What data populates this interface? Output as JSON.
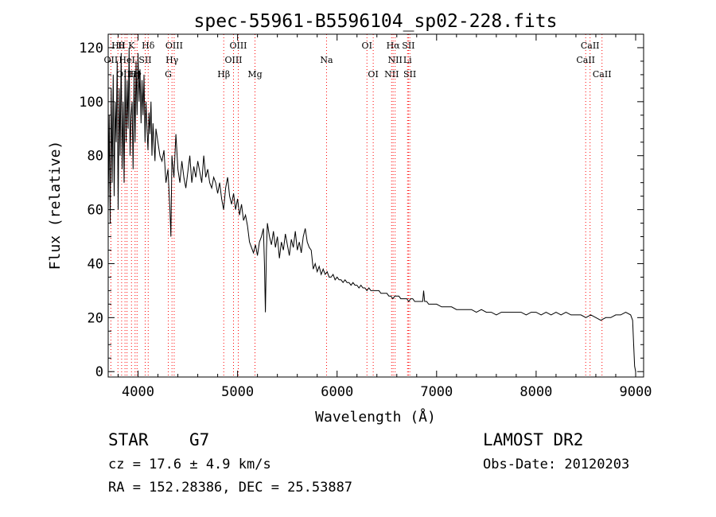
{
  "chart_data": {
    "type": "line",
    "title": "spec-55961-B5596104_sp02-228.fits",
    "xlabel": "Wavelength (Å)",
    "ylabel": "Flux (relative)",
    "xlim": [
      3700,
      9080
    ],
    "ylim": [
      -2,
      125
    ],
    "xticks": [
      4000,
      5000,
      6000,
      7000,
      8000,
      9000
    ],
    "yticks": [
      0,
      20,
      40,
      60,
      80,
      100,
      120
    ],
    "grid": false,
    "line_color": "#000000",
    "marker_color": "#ff0000",
    "series": [
      {
        "values": [
          [
            3700,
            60
          ],
          [
            3710,
            95
          ],
          [
            3720,
            55
          ],
          [
            3730,
            105
          ],
          [
            3740,
            70
          ],
          [
            3750,
            110
          ],
          [
            3760,
            65
          ],
          [
            3770,
            100
          ],
          [
            3780,
            85
          ],
          [
            3790,
            115
          ],
          [
            3800,
            60
          ],
          [
            3810,
            105
          ],
          [
            3820,
            80
          ],
          [
            3830,
            118
          ],
          [
            3840,
            75
          ],
          [
            3850,
            100
          ],
          [
            3860,
            70
          ],
          [
            3870,
            112
          ],
          [
            3880,
            85
          ],
          [
            3890,
            108
          ],
          [
            3900,
            90
          ],
          [
            3910,
            120
          ],
          [
            3920,
            80
          ],
          [
            3930,
            95
          ],
          [
            3940,
            100
          ],
          [
            3950,
            75
          ],
          [
            3960,
            110
          ],
          [
            3970,
            85
          ],
          [
            3980,
            115
          ],
          [
            3990,
            95
          ],
          [
            4000,
            118
          ],
          [
            4010,
            100
          ],
          [
            4020,
            112
          ],
          [
            4030,
            92
          ],
          [
            4040,
            108
          ],
          [
            4050,
            95
          ],
          [
            4060,
            110
          ],
          [
            4070,
            85
          ],
          [
            4080,
            100
          ],
          [
            4090,
            90
          ],
          [
            4100,
            82
          ],
          [
            4110,
            96
          ],
          [
            4120,
            88
          ],
          [
            4130,
            100
          ],
          [
            4140,
            80
          ],
          [
            4150,
            92
          ],
          [
            4160,
            85
          ],
          [
            4170,
            78
          ],
          [
            4180,
            90
          ],
          [
            4200,
            85
          ],
          [
            4220,
            80
          ],
          [
            4240,
            78
          ],
          [
            4260,
            82
          ],
          [
            4280,
            70
          ],
          [
            4300,
            75
          ],
          [
            4320,
            60
          ],
          [
            4330,
            50
          ],
          [
            4340,
            80
          ],
          [
            4360,
            72
          ],
          [
            4380,
            88
          ],
          [
            4400,
            75
          ],
          [
            4420,
            70
          ],
          [
            4440,
            78
          ],
          [
            4460,
            72
          ],
          [
            4480,
            68
          ],
          [
            4500,
            74
          ],
          [
            4520,
            80
          ],
          [
            4540,
            70
          ],
          [
            4560,
            76
          ],
          [
            4580,
            72
          ],
          [
            4600,
            78
          ],
          [
            4620,
            74
          ],
          [
            4640,
            70
          ],
          [
            4660,
            80
          ],
          [
            4680,
            72
          ],
          [
            4700,
            75
          ],
          [
            4720,
            70
          ],
          [
            4740,
            68
          ],
          [
            4760,
            72
          ],
          [
            4780,
            70
          ],
          [
            4800,
            66
          ],
          [
            4820,
            70
          ],
          [
            4840,
            64
          ],
          [
            4860,
            60
          ],
          [
            4880,
            68
          ],
          [
            4900,
            72
          ],
          [
            4920,
            65
          ],
          [
            4940,
            62
          ],
          [
            4960,
            66
          ],
          [
            4980,
            60
          ],
          [
            5000,
            64
          ],
          [
            5020,
            58
          ],
          [
            5040,
            62
          ],
          [
            5060,
            56
          ],
          [
            5080,
            58
          ],
          [
            5100,
            54
          ],
          [
            5120,
            48
          ],
          [
            5140,
            46
          ],
          [
            5160,
            44
          ],
          [
            5180,
            47
          ],
          [
            5200,
            43
          ],
          [
            5220,
            48
          ],
          [
            5240,
            50
          ],
          [
            5260,
            53
          ],
          [
            5270,
            40
          ],
          [
            5280,
            22
          ],
          [
            5290,
            45
          ],
          [
            5300,
            55
          ],
          [
            5320,
            50
          ],
          [
            5340,
            47
          ],
          [
            5360,
            52
          ],
          [
            5380,
            46
          ],
          [
            5400,
            50
          ],
          [
            5420,
            42
          ],
          [
            5440,
            48
          ],
          [
            5460,
            45
          ],
          [
            5480,
            51
          ],
          [
            5500,
            47
          ],
          [
            5520,
            43
          ],
          [
            5540,
            49
          ],
          [
            5560,
            46
          ],
          [
            5580,
            52
          ],
          [
            5600,
            45
          ],
          [
            5620,
            48
          ],
          [
            5640,
            44
          ],
          [
            5660,
            50
          ],
          [
            5680,
            53
          ],
          [
            5700,
            48
          ],
          [
            5720,
            46
          ],
          [
            5740,
            45
          ],
          [
            5760,
            38
          ],
          [
            5780,
            40
          ],
          [
            5800,
            37
          ],
          [
            5820,
            39
          ],
          [
            5840,
            36
          ],
          [
            5860,
            38
          ],
          [
            5880,
            36
          ],
          [
            5900,
            37
          ],
          [
            5920,
            35
          ],
          [
            5940,
            35
          ],
          [
            5960,
            36
          ],
          [
            5980,
            34
          ],
          [
            6000,
            35
          ],
          [
            6020,
            34
          ],
          [
            6040,
            34
          ],
          [
            6060,
            33
          ],
          [
            6080,
            34
          ],
          [
            6100,
            33
          ],
          [
            6120,
            33
          ],
          [
            6140,
            32
          ],
          [
            6160,
            33
          ],
          [
            6180,
            32
          ],
          [
            6200,
            32
          ],
          [
            6220,
            31
          ],
          [
            6240,
            32
          ],
          [
            6260,
            31
          ],
          [
            6280,
            31
          ],
          [
            6300,
            30
          ],
          [
            6320,
            31
          ],
          [
            6340,
            30
          ],
          [
            6360,
            30
          ],
          [
            6380,
            30
          ],
          [
            6400,
            30
          ],
          [
            6420,
            30
          ],
          [
            6440,
            29
          ],
          [
            6460,
            29
          ],
          [
            6480,
            29
          ],
          [
            6500,
            29
          ],
          [
            6520,
            28
          ],
          [
            6540,
            28
          ],
          [
            6560,
            27
          ],
          [
            6580,
            28
          ],
          [
            6600,
            28
          ],
          [
            6620,
            28
          ],
          [
            6640,
            27
          ],
          [
            6660,
            27
          ],
          [
            6680,
            27
          ],
          [
            6700,
            27
          ],
          [
            6720,
            26
          ],
          [
            6740,
            27
          ],
          [
            6760,
            27
          ],
          [
            6780,
            26
          ],
          [
            6800,
            26
          ],
          [
            6820,
            26
          ],
          [
            6840,
            26
          ],
          [
            6860,
            26
          ],
          [
            6870,
            30
          ],
          [
            6880,
            26
          ],
          [
            6900,
            26
          ],
          [
            6920,
            25
          ],
          [
            6940,
            25
          ],
          [
            6960,
            25
          ],
          [
            6980,
            25
          ],
          [
            7000,
            25
          ],
          [
            7050,
            24
          ],
          [
            7100,
            24
          ],
          [
            7150,
            24
          ],
          [
            7200,
            23
          ],
          [
            7250,
            23
          ],
          [
            7300,
            23
          ],
          [
            7350,
            23
          ],
          [
            7400,
            22
          ],
          [
            7450,
            23
          ],
          [
            7500,
            22
          ],
          [
            7550,
            22
          ],
          [
            7600,
            21
          ],
          [
            7650,
            22
          ],
          [
            7700,
            22
          ],
          [
            7750,
            22
          ],
          [
            7800,
            22
          ],
          [
            7850,
            22
          ],
          [
            7900,
            21
          ],
          [
            7950,
            22
          ],
          [
            8000,
            22
          ],
          [
            8050,
            21
          ],
          [
            8100,
            22
          ],
          [
            8150,
            21
          ],
          [
            8200,
            22
          ],
          [
            8250,
            21
          ],
          [
            8300,
            22
          ],
          [
            8350,
            21
          ],
          [
            8400,
            21
          ],
          [
            8450,
            21
          ],
          [
            8500,
            20
          ],
          [
            8550,
            21
          ],
          [
            8600,
            20
          ],
          [
            8650,
            19
          ],
          [
            8700,
            20
          ],
          [
            8750,
            20
          ],
          [
            8800,
            21
          ],
          [
            8850,
            21
          ],
          [
            8900,
            22
          ],
          [
            8950,
            21
          ],
          [
            8970,
            19
          ],
          [
            8980,
            10
          ],
          [
            8990,
            2
          ],
          [
            9000,
            0
          ]
        ]
      }
    ],
    "line_markers": [
      {
        "label": "Hθ",
        "x": 3798,
        "row": 0
      },
      {
        "label": "H",
        "x": 3835,
        "row": 0
      },
      {
        "label": "K",
        "x": 3934,
        "row": 0
      },
      {
        "label": "Hδ",
        "x": 4102,
        "row": 0
      },
      {
        "label": "OII",
        "x": 3727,
        "row": 1
      },
      {
        "label": "HeI",
        "x": 3889,
        "row": 1
      },
      {
        "label": "SII",
        "x": 4072,
        "row": 1
      },
      {
        "label": "OIII",
        "x": 3869,
        "row": 2
      },
      {
        "label": "Hγ",
        "x": 3970,
        "row": 2
      },
      {
        "label": "H",
        "x": 3990,
        "row": 2
      },
      {
        "label": "OIII",
        "x": 4363,
        "row": 0
      },
      {
        "label": "Hγ",
        "x": 4341,
        "row": 1
      },
      {
        "label": "G",
        "x": 4304,
        "row": 2
      },
      {
        "label": "OIII",
        "x": 5007,
        "row": 0
      },
      {
        "label": "OIII",
        "x": 4959,
        "row": 1
      },
      {
        "label": "Hβ",
        "x": 4861,
        "row": 2
      },
      {
        "label": "Mg",
        "x": 5175,
        "row": 2
      },
      {
        "label": "Na",
        "x": 5894,
        "row": 1
      },
      {
        "label": "OI",
        "x": 6300,
        "row": 0
      },
      {
        "label": "OI",
        "x": 6363,
        "row": 2
      },
      {
        "label": "Hα",
        "x": 6563,
        "row": 0
      },
      {
        "label": "SII",
        "x": 6717,
        "row": 0
      },
      {
        "label": "NII",
        "x": 6583,
        "row": 1
      },
      {
        "label": "Li",
        "x": 6708,
        "row": 1
      },
      {
        "label": "NII",
        "x": 6548,
        "row": 2
      },
      {
        "label": "SII",
        "x": 6731,
        "row": 2
      },
      {
        "label": "CaII",
        "x": 8542,
        "row": 0
      },
      {
        "label": "CaII",
        "x": 8498,
        "row": 1
      },
      {
        "label": "CaII",
        "x": 8662,
        "row": 2
      }
    ]
  },
  "info": {
    "class_label": "STAR",
    "subclass": "G7",
    "survey": "LAMOST DR2",
    "cz": "cz = 17.6 ± 4.9 km/s",
    "obs_date": "Obs-Date: 20120203",
    "coords": "RA = 152.28386, DEC =  25.53887"
  }
}
